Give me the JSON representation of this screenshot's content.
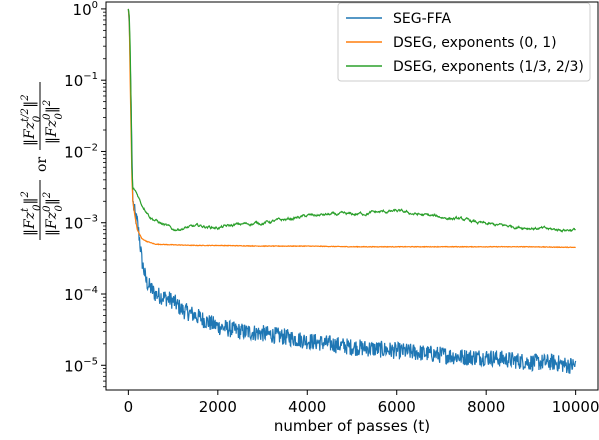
{
  "chart_data": {
    "type": "line",
    "title": "",
    "xlabel": "number of passes (t)",
    "ylabel": "‖Fz_0^t‖² / ‖Fz_0^0‖² or ‖Fz_0^{t/2}‖² / ‖Fz_0^0‖²",
    "xlim": [
      -500,
      10500
    ],
    "ylim": [
      4.5e-06,
      1.25
    ],
    "yscale": "log",
    "grid": false,
    "legend_position": "top-right",
    "x_ticks": [
      {
        "value": 0,
        "label": "0"
      },
      {
        "value": 2000,
        "label": "2000"
      },
      {
        "value": 4000,
        "label": "4000"
      },
      {
        "value": 6000,
        "label": "6000"
      },
      {
        "value": 8000,
        "label": "8000"
      },
      {
        "value": 10000,
        "label": "10000"
      }
    ],
    "y_ticks": [
      {
        "value": 1,
        "base": "10",
        "exp": "0"
      },
      {
        "value": 0.1,
        "base": "10",
        "exp": "−1"
      },
      {
        "value": 0.01,
        "base": "10",
        "exp": "−2"
      },
      {
        "value": 0.001,
        "base": "10",
        "exp": "−3"
      },
      {
        "value": 0.0001,
        "base": "10",
        "exp": "−4"
      },
      {
        "value": 1e-05,
        "base": "10",
        "exp": "−5"
      }
    ],
    "series": [
      {
        "name": "SEG-FFA",
        "color": "#1f77b4",
        "x": [
          0,
          20,
          40,
          60,
          80,
          100,
          130,
          160,
          200,
          250,
          300,
          400,
          500,
          600,
          800,
          1000,
          1200,
          1500,
          1800,
          2000,
          2500,
          3000,
          3500,
          4000,
          4500,
          5000,
          5500,
          6000,
          6500,
          7000,
          7500,
          8000,
          8500,
          9000,
          9500,
          9800,
          10000
        ],
        "y": [
          1.0,
          0.6,
          0.2,
          0.05,
          0.01,
          0.002,
          0.0015,
          0.0012,
          0.001,
          0.0006,
          0.0003,
          0.00015,
          0.00012,
          0.0001,
          9e-05,
          8e-05,
          6e-05,
          5e-05,
          4e-05,
          3.5e-05,
          3e-05,
          2.8e-05,
          2.5e-05,
          2.2e-05,
          2e-05,
          1.8e-05,
          1.7e-05,
          1.6e-05,
          1.5e-05,
          1.4e-05,
          1.3e-05,
          1.3e-05,
          1.2e-05,
          1.1e-05,
          1.1e-05,
          1e-05,
          1e-05
        ]
      },
      {
        "name": "DSEG, exponents (0, 1)",
        "color": "#ff7f0e",
        "x": [
          0,
          20,
          40,
          60,
          80,
          100,
          150,
          200,
          300,
          400,
          600,
          1000,
          1500,
          2000,
          3000,
          4000,
          5000,
          6000,
          7000,
          8000,
          9000,
          10000
        ],
        "y": [
          1.0,
          0.7,
          0.1,
          0.02,
          0.004,
          0.002,
          0.0012,
          0.0008,
          0.0006,
          0.00055,
          0.0005,
          0.00049,
          0.00048,
          0.00048,
          0.00047,
          0.00047,
          0.00046,
          0.00046,
          0.00046,
          0.00046,
          0.00046,
          0.00045
        ]
      },
      {
        "name": "DSEG, exponents (1/3, 2/3)",
        "color": "#2ca02c",
        "x": [
          0,
          20,
          40,
          60,
          80,
          100,
          150,
          200,
          300,
          400,
          500,
          700,
          1000,
          1300,
          1600,
          2000,
          2500,
          3000,
          3500,
          4000,
          4500,
          5000,
          5500,
          6000,
          6500,
          7000,
          7500,
          8000,
          8500,
          9000,
          9500,
          10000
        ],
        "y": [
          1.0,
          0.8,
          0.3,
          0.05,
          0.006,
          0.003,
          0.0028,
          0.0025,
          0.0018,
          0.0015,
          0.0012,
          0.001,
          0.0008,
          0.00085,
          0.0009,
          0.00085,
          0.00095,
          0.001,
          0.0011,
          0.00125,
          0.0013,
          0.0013,
          0.0014,
          0.00145,
          0.0013,
          0.0012,
          0.0011,
          0.00095,
          0.0009,
          0.00085,
          0.0008,
          0.0008
        ]
      }
    ]
  }
}
